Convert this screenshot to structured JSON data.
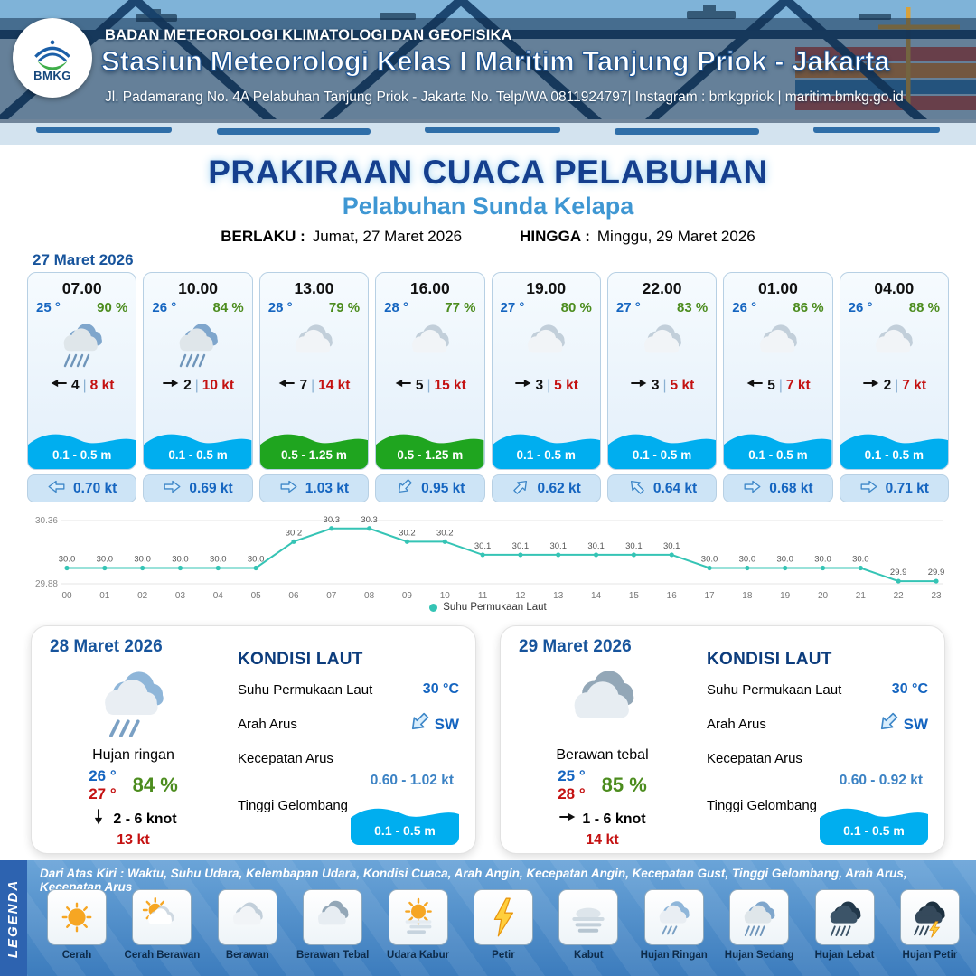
{
  "header": {
    "logo_text": "BMKG",
    "agency": "BADAN METEOROLOGI KLIMATOLOGI DAN GEOFISIKA",
    "station": "Stasiun Meteorologi Kelas I Maritim Tanjung Priok - Jakarta",
    "address": "Jl. Padamarang No. 4A Pelabuhan Tanjung Priok - Jakarta No. Telp/WA 0811924797| Instagram : bmkgpriok | maritim.bmkg.go.id"
  },
  "title": {
    "main": "PRAKIRAAN CUACA PELABUHAN",
    "sub": "Pelabuhan Sunda Kelapa",
    "valid_from_label": "BERLAKU :",
    "valid_from": "Jumat, 27 Maret 2026",
    "valid_to_label": "HINGGA :",
    "valid_to": "Minggu, 29 Maret 2026"
  },
  "ui": {
    "divider": "|"
  },
  "timeline": {
    "date": "27 Maret 2026",
    "cards": [
      {
        "time": "07.00",
        "temp": "25 °",
        "humidity": "90 %",
        "icon": "hujan-sedang",
        "wind_value": "4",
        "wind_speed": "8 kt",
        "wind_deg": 180,
        "wave": "0.1 - 0.5 m",
        "wave_level": "low",
        "current": "0.70 kt",
        "current_deg": 180
      },
      {
        "time": "10.00",
        "temp": "26 °",
        "humidity": "84 %",
        "icon": "hujan-sedang",
        "wind_value": "2",
        "wind_speed": "10 kt",
        "wind_deg": 0,
        "wave": "0.1 - 0.5 m",
        "wave_level": "low",
        "current": "0.69 kt",
        "current_deg": 0
      },
      {
        "time": "13.00",
        "temp": "28 °",
        "humidity": "79 %",
        "icon": "berawan",
        "wind_value": "7",
        "wind_speed": "14 kt",
        "wind_deg": 180,
        "wave": "0.5 - 1.25 m",
        "wave_level": "mid",
        "current": "1.03 kt",
        "current_deg": 0
      },
      {
        "time": "16.00",
        "temp": "28 °",
        "humidity": "77 %",
        "icon": "berawan",
        "wind_value": "5",
        "wind_speed": "15 kt",
        "wind_deg": 180,
        "wave": "0.5 - 1.25 m",
        "wave_level": "mid",
        "current": "0.95 kt",
        "current_deg": 135
      },
      {
        "time": "19.00",
        "temp": "27 °",
        "humidity": "80 %",
        "icon": "berawan",
        "wind_value": "3",
        "wind_speed": "5 kt",
        "wind_deg": 0,
        "wave": "0.1 - 0.5 m",
        "wave_level": "low",
        "current": "0.62 kt",
        "current_deg": 315
      },
      {
        "time": "22.00",
        "temp": "27 °",
        "humidity": "83 %",
        "icon": "berawan",
        "wind_value": "3",
        "wind_speed": "5 kt",
        "wind_deg": 0,
        "wave": "0.1 - 0.5 m",
        "wave_level": "low",
        "current": "0.64 kt",
        "current_deg": 225
      },
      {
        "time": "01.00",
        "temp": "26 °",
        "humidity": "86 %",
        "icon": "berawan",
        "wind_value": "5",
        "wind_speed": "7 kt",
        "wind_deg": 180,
        "wave": "0.1 - 0.5 m",
        "wave_level": "low",
        "current": "0.68 kt",
        "current_deg": 0
      },
      {
        "time": "04.00",
        "temp": "26 °",
        "humidity": "88 %",
        "icon": "berawan",
        "wind_value": "2",
        "wind_speed": "7 kt",
        "wind_deg": 0,
        "wave": "0.1 - 0.5 m",
        "wave_level": "low",
        "current": "0.71 kt",
        "current_deg": 0
      }
    ]
  },
  "chart_data": {
    "type": "line",
    "x": [
      "00",
      "01",
      "02",
      "03",
      "04",
      "05",
      "06",
      "07",
      "08",
      "09",
      "10",
      "11",
      "12",
      "13",
      "14",
      "15",
      "16",
      "17",
      "18",
      "19",
      "20",
      "21",
      "22",
      "23"
    ],
    "series": [
      {
        "name": "Suhu Permukaan Laut",
        "values": [
          30.0,
          30.0,
          30.0,
          30.0,
          30.0,
          30.0,
          30.2,
          30.3,
          30.3,
          30.2,
          30.2,
          30.1,
          30.1,
          30.1,
          30.1,
          30.1,
          30.1,
          30.0,
          30.0,
          30.0,
          30.0,
          30.0,
          29.9,
          29.9
        ]
      }
    ],
    "ylim": [
      29.88,
      30.36
    ],
    "y_ticks": [
      "30.36",
      "29.88"
    ],
    "grid": true,
    "legend_position": "bottom",
    "line_color": "#35c4b5"
  },
  "daily": [
    {
      "date": "28 Maret 2026",
      "icon": "hujan-ringan",
      "condition": "Hujan ringan",
      "temp_min": "26 °",
      "temp_max": "27 °",
      "humidity": "84 %",
      "wind": "2 - 6 knot",
      "wind_deg": 90,
      "gust": "13 kt",
      "sea": {
        "title": "KONDISI LAUT",
        "sst_label": "Suhu Permukaan Laut",
        "sst": "30 °C",
        "current_dir_label": "Arah Arus",
        "current_dir": "SW",
        "current_dir_deg": 135,
        "current_speed_label": "Kecepatan Arus",
        "current_speed": "0.60 - 1.02 kt",
        "wave_label": "Tinggi Gelombang",
        "wave": "0.1 - 0.5 m",
        "wave_level": "low"
      }
    },
    {
      "date": "29 Maret 2026",
      "icon": "berawan-tebal",
      "condition": "Berawan tebal",
      "temp_min": "25 °",
      "temp_max": "28 °",
      "humidity": "85 %",
      "wind": "1 - 6 knot",
      "wind_deg": 0,
      "gust": "14 kt",
      "sea": {
        "title": "KONDISI LAUT",
        "sst_label": "Suhu Permukaan Laut",
        "sst": "30 °C",
        "current_dir_label": "Arah Arus",
        "current_dir": "SW",
        "current_dir_deg": 135,
        "current_speed_label": "Kecepatan Arus",
        "current_speed": "0.60 - 0.92 kt",
        "wave_label": "Tinggi Gelombang",
        "wave": "0.1 - 0.5 m",
        "wave_level": "low"
      }
    }
  ],
  "legend": {
    "title": "LEGENDA",
    "description": "Dari Atas Kiri : Waktu, Suhu Udara, Kelembapan Udara, Kondisi Cuaca, Arah Angin, Kecepatan Angin, Kecepatan Gust, Tinggi Gelombang, Arah Arus, Kecepatan Arus",
    "items": [
      {
        "label": "Cerah",
        "icon": "cerah"
      },
      {
        "label": "Cerah Berawan",
        "icon": "cerah-berawan"
      },
      {
        "label": "Berawan",
        "icon": "berawan"
      },
      {
        "label": "Berawan Tebal",
        "icon": "berawan-tebal"
      },
      {
        "label": "Udara Kabur",
        "icon": "udara-kabur"
      },
      {
        "label": "Petir",
        "icon": "petir"
      },
      {
        "label": "Kabut",
        "icon": "kabut"
      },
      {
        "label": "Hujan Ringan",
        "icon": "hujan-ringan"
      },
      {
        "label": "Hujan Sedang",
        "icon": "hujan-sedang"
      },
      {
        "label": "Hujan Lebat",
        "icon": "hujan-lebat"
      },
      {
        "label": "Hujan Petir",
        "icon": "hujan-petir"
      }
    ]
  },
  "colors": {
    "header_navy": "#16395e",
    "title_blue": "#153f8e",
    "subtitle_blue": "#3f97d3",
    "accent_blue": "#1565c0",
    "humidity_green": "#4c8c1e",
    "speed_red": "#c41111",
    "wave_low": "#00aeef",
    "wave_mid": "#1fa51f",
    "current_box": "#cde4f6",
    "chart_line": "#35c4b5",
    "legend_bg": "#3c7cbd"
  }
}
